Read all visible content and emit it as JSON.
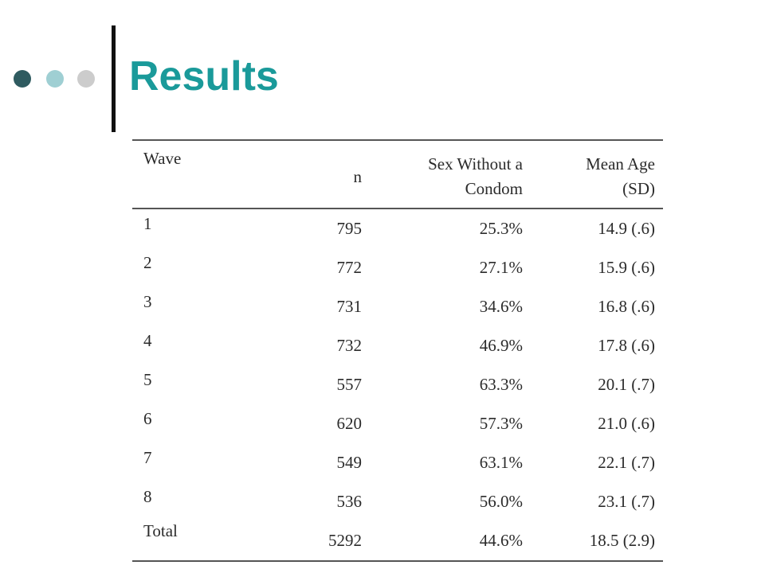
{
  "title": "Results",
  "table": {
    "headers": {
      "wave": "Wave",
      "n": "n",
      "sex_line1": "Sex Without a",
      "sex_line2": "Condom",
      "age_line1": "Mean Age",
      "age_line2": "(SD)"
    },
    "rows": [
      {
        "wave": "1",
        "n": "795",
        "sex": "25.3%",
        "age": "14.9 (.6)"
      },
      {
        "wave": "2",
        "n": "772",
        "sex": "27.1%",
        "age": "15.9 (.6)"
      },
      {
        "wave": "3",
        "n": "731",
        "sex": "34.6%",
        "age": "16.8 (.6)"
      },
      {
        "wave": "4",
        "n": "732",
        "sex": "46.9%",
        "age": "17.8 (.6)"
      },
      {
        "wave": "5",
        "n": "557",
        "sex": "63.3%",
        "age": "20.1 (.7)"
      },
      {
        "wave": "6",
        "n": "620",
        "sex": "57.3%",
        "age": "21.0 (.6)"
      },
      {
        "wave": "7",
        "n": "549",
        "sex": "63.1%",
        "age": "22.1 (.7)"
      },
      {
        "wave": "8",
        "n": "536",
        "sex": "56.0%",
        "age": "23.1 (.7)"
      },
      {
        "wave": "Total",
        "n": "5292",
        "sex": "44.6%",
        "age": "18.5 (2.9)"
      }
    ]
  }
}
